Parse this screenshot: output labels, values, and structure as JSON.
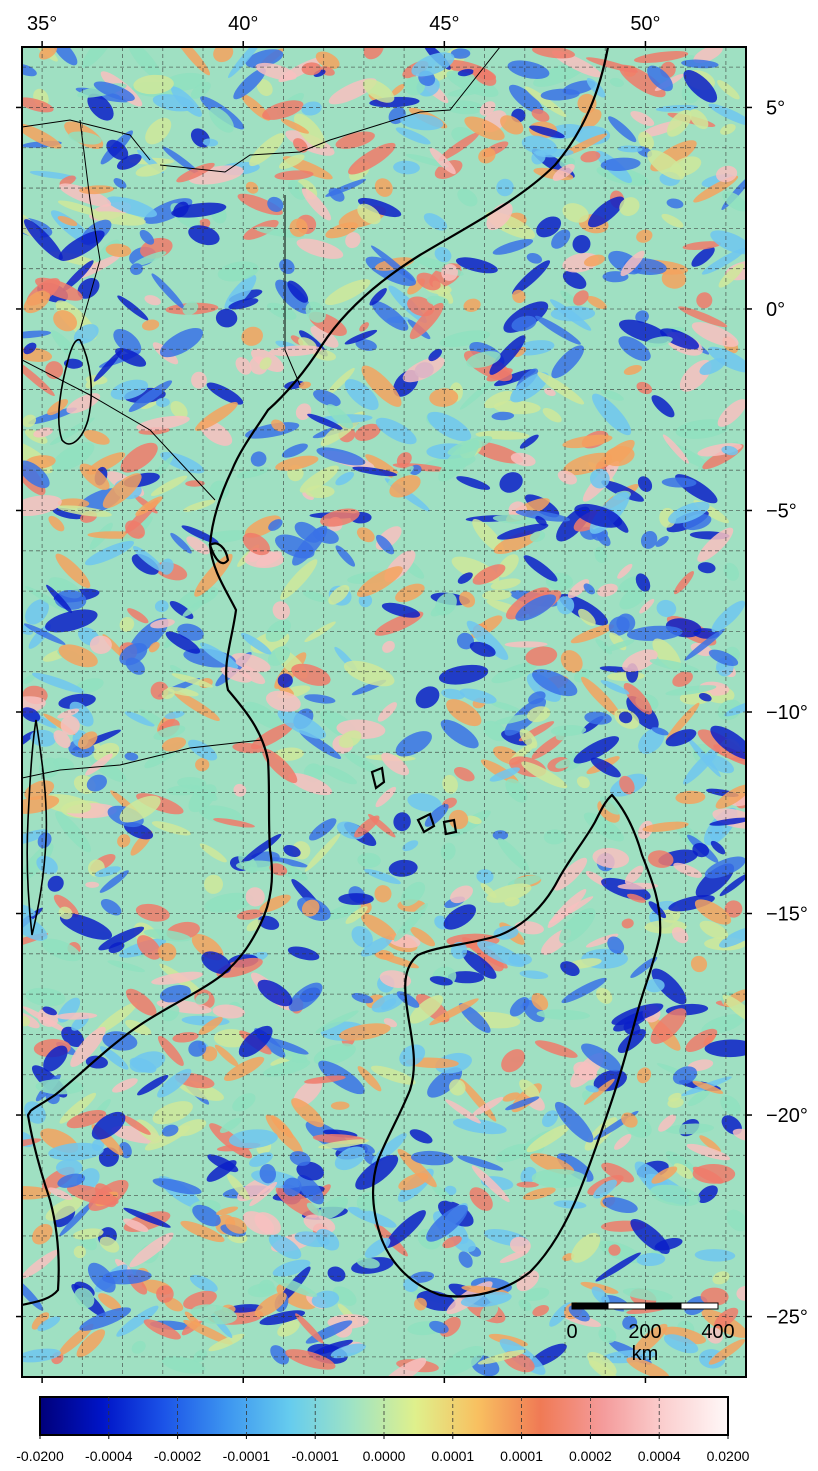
{
  "map": {
    "lon_ticks": [
      {
        "value": 35,
        "label": "35°"
      },
      {
        "value": 40,
        "label": "40°"
      },
      {
        "value": 45,
        "label": "45°"
      },
      {
        "value": 50,
        "label": "50°"
      }
    ],
    "lat_ticks": [
      {
        "value": 5,
        "label": "5°"
      },
      {
        "value": 0,
        "label": "0°"
      },
      {
        "value": -5,
        "label": "−5°"
      },
      {
        "value": -10,
        "label": "−10°"
      },
      {
        "value": -15,
        "label": "−15°"
      },
      {
        "value": -20,
        "label": "−20°"
      },
      {
        "value": -25,
        "label": "−25°"
      }
    ],
    "lon_range": [
      34.5,
      52.5
    ],
    "lat_range": [
      -26.5,
      6.5
    ],
    "grid_spacing_deg": 1,
    "gridlines": "dashed",
    "field_colors": {
      "dark_blue": "#0a1fc8",
      "blue": "#3a72e6",
      "light_blue": "#6fc6f0",
      "cyan_green": "#8fe0c0",
      "yellow_green": "#cfe89a",
      "orange": "#f4a25e",
      "salmon": "#f07a6a",
      "pink": "#f8c0c0"
    }
  },
  "scale_bar": {
    "labels": [
      "0",
      "200",
      "400"
    ],
    "unit": "km"
  },
  "colorbar": {
    "tick_labels": [
      "-0.0200",
      "-0.0004",
      "-0.0002",
      "-0.0001",
      "-0.0001",
      "0.0000",
      "0.0001",
      "0.0001",
      "0.0002",
      "0.0004",
      "0.0200"
    ],
    "colors": [
      "#00007a",
      "#0015c8",
      "#1c55e8",
      "#3d96f0",
      "#66ccee",
      "#9fe3c4",
      "#dff08c",
      "#f8c060",
      "#f07a55",
      "#f49b9b",
      "#fbd0d0",
      "#fff8f8"
    ]
  }
}
